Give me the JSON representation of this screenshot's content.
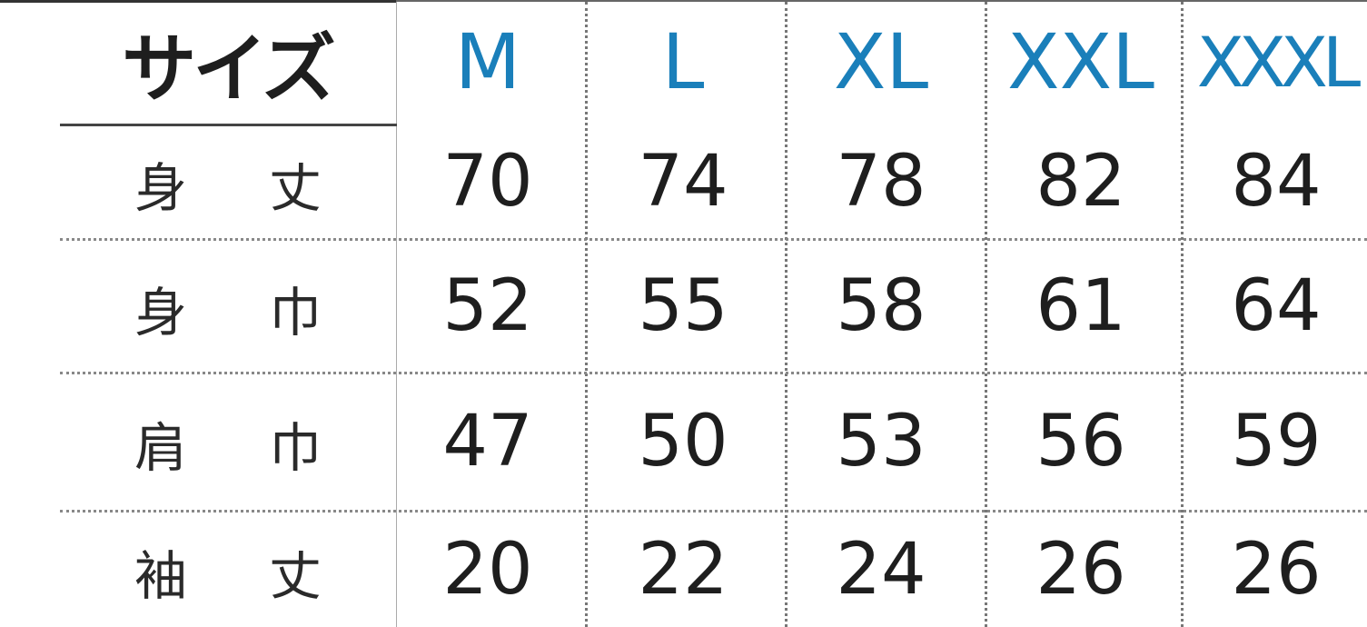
{
  "corner_label": "サイズ",
  "sizes": [
    "M",
    "L",
    "XL",
    "XXL",
    "XXXL"
  ],
  "rows": [
    {
      "label": [
        "身",
        "丈"
      ],
      "values": [
        "70",
        "74",
        "78",
        "82",
        "84"
      ]
    },
    {
      "label": [
        "身",
        "巾"
      ],
      "values": [
        "52",
        "55",
        "58",
        "61",
        "64"
      ]
    },
    {
      "label": [
        "肩",
        "巾"
      ],
      "values": [
        "47",
        "50",
        "53",
        "56",
        "59"
      ]
    },
    {
      "label": [
        "袖",
        "丈"
      ],
      "values": [
        "20",
        "22",
        "24",
        "26",
        "26"
      ]
    }
  ],
  "colors": {
    "header": "#1a7fba",
    "text": "#1e1e1e"
  }
}
